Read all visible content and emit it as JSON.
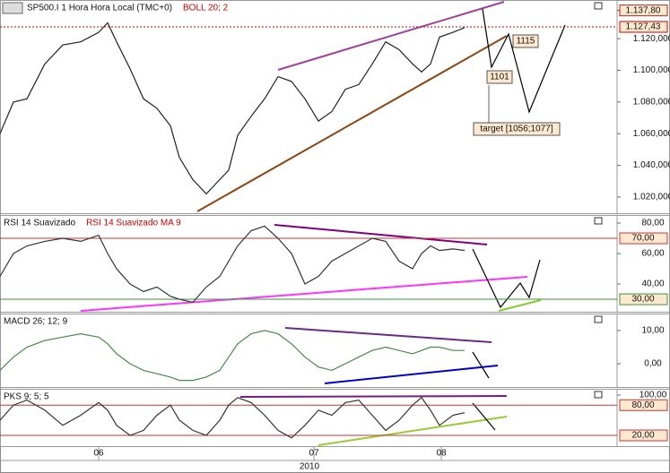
{
  "chart_data": [
    {
      "type": "line",
      "title": "SP500.I 1 Hora Hora Local (TMC+0)",
      "subtitle": "BOLL 20; 2",
      "x": [
        0,
        15,
        30,
        50,
        70,
        90,
        110,
        120,
        130,
        145,
        160,
        175,
        190,
        200,
        215,
        230,
        245,
        255,
        265,
        280,
        295,
        310,
        325,
        340,
        355,
        370,
        385,
        400,
        415,
        430,
        445,
        460,
        470,
        480,
        490,
        505,
        518
      ],
      "values": [
        1060,
        1080,
        1082,
        1104,
        1116,
        1118,
        1124,
        1130,
        1118,
        1101,
        1082,
        1076,
        1065,
        1045,
        1031,
        1022,
        1031,
        1037,
        1059,
        1071,
        1082,
        1096,
        1093,
        1082,
        1068,
        1074,
        1088,
        1091,
        1104,
        1118,
        1113,
        1104,
        1099,
        1104,
        1121,
        1124,
        1127
      ],
      "color": "#222222",
      "xlim": [
        0,
        688
      ],
      "ylim": [
        1009.8,
        1144.4
      ],
      "yticks": [
        {
          "value": 1020,
          "label": "1.020,000"
        },
        {
          "value": 1040,
          "label": "1.040,000"
        },
        {
          "value": 1060,
          "label": "1.060,000"
        },
        {
          "value": 1080,
          "label": "1.080,000"
        },
        {
          "value": 1100,
          "label": "1.100,000"
        },
        {
          "value": 1120,
          "label": "1.120,000"
        }
      ],
      "levels": [
        {
          "value": 1137.8,
          "label": "1.137,80",
          "color": "#b22222",
          "line": false
        },
        {
          "value": 1127.43,
          "label": "1.127,43",
          "color": "#cc0000",
          "line": true
        }
      ],
      "annotations": [
        "1115",
        "1101",
        "target [1056;1077]"
      ]
    },
    {
      "type": "line",
      "title": "RSI 14 Suavizado",
      "subtitle": "RSI 14 Suavizado MA 9",
      "x": [
        0,
        15,
        30,
        50,
        70,
        90,
        110,
        120,
        130,
        145,
        160,
        175,
        190,
        200,
        215,
        230,
        245,
        255,
        265,
        280,
        295,
        310,
        325,
        340,
        355,
        370,
        385,
        400,
        415,
        430,
        445,
        460,
        470,
        480,
        490,
        505,
        518
      ],
      "values": [
        45,
        60,
        65,
        68,
        70,
        68,
        72,
        60,
        50,
        40,
        35,
        38,
        32,
        30,
        28,
        38,
        45,
        55,
        65,
        75,
        78,
        70,
        60,
        40,
        45,
        55,
        60,
        65,
        70,
        68,
        55,
        50,
        60,
        65,
        62,
        63,
        62
      ],
      "color": "#333333",
      "xlim": [
        0,
        688
      ],
      "ylim": [
        21.8,
        85.3
      ],
      "yticks": [
        {
          "value": 80,
          "label": "80,00"
        },
        {
          "value": 60,
          "label": "60,00"
        },
        {
          "value": 40,
          "label": "40,00"
        }
      ],
      "levels": [
        {
          "value": 70,
          "label": "70,00",
          "color": "#cc3333",
          "line": true
        },
        {
          "value": 30,
          "label": "30,00",
          "color": "#339933",
          "line": true
        }
      ]
    },
    {
      "type": "line",
      "title": "MACD 26; 12; 9",
      "x": [
        0,
        15,
        30,
        50,
        70,
        90,
        110,
        120,
        130,
        145,
        160,
        175,
        190,
        200,
        215,
        230,
        245,
        255,
        265,
        280,
        295,
        310,
        325,
        340,
        355,
        370,
        385,
        400,
        415,
        430,
        445,
        460,
        470,
        480,
        490,
        505,
        518
      ],
      "values": [
        -2,
        2,
        5,
        7,
        8,
        9,
        8,
        6,
        3,
        0,
        -2,
        -3,
        -4,
        -5,
        -5,
        -4,
        -2,
        2,
        6,
        9,
        10,
        9,
        6,
        2,
        -1,
        -2,
        0,
        2,
        4,
        5,
        4,
        3,
        4,
        5,
        5,
        4,
        4
      ],
      "color": "#4a8a4a",
      "xlim": [
        0,
        688
      ],
      "ylim": [
        -7.0,
        15.1
      ],
      "yticks": [
        {
          "value": 10,
          "label": "10,00"
        },
        {
          "value": 0,
          "label": "0,00"
        }
      ],
      "levels": []
    },
    {
      "type": "line",
      "title": "PKS 9; 5; 5",
      "x": [
        0,
        15,
        30,
        50,
        70,
        90,
        110,
        120,
        130,
        145,
        160,
        175,
        190,
        200,
        215,
        230,
        245,
        255,
        265,
        280,
        295,
        310,
        325,
        340,
        355,
        370,
        385,
        400,
        415,
        430,
        445,
        460,
        470,
        480,
        490,
        505,
        518
      ],
      "values": [
        50,
        80,
        90,
        70,
        40,
        60,
        85,
        70,
        40,
        20,
        30,
        60,
        80,
        50,
        30,
        20,
        50,
        80,
        95,
        85,
        60,
        30,
        15,
        40,
        70,
        60,
        85,
        90,
        60,
        30,
        50,
        80,
        95,
        70,
        40,
        60,
        65
      ],
      "color": "#333333",
      "xlim": [
        0,
        688
      ],
      "ylim": [
        -1.3,
        112.4
      ],
      "yticks": [
        {
          "value": 100,
          "label": "100,00"
        }
      ],
      "levels": [
        {
          "value": 80,
          "label": "80,00",
          "color": "#cc3333",
          "line": true
        },
        {
          "value": 20,
          "label": "20,00",
          "color": "#cc3333",
          "line": true
        }
      ],
      "xticks": [
        {
          "value": 110,
          "label": "06"
        },
        {
          "value": 350,
          "label": "07"
        },
        {
          "value": 492,
          "label": "08"
        }
      ],
      "xlabel": "2010"
    }
  ]
}
